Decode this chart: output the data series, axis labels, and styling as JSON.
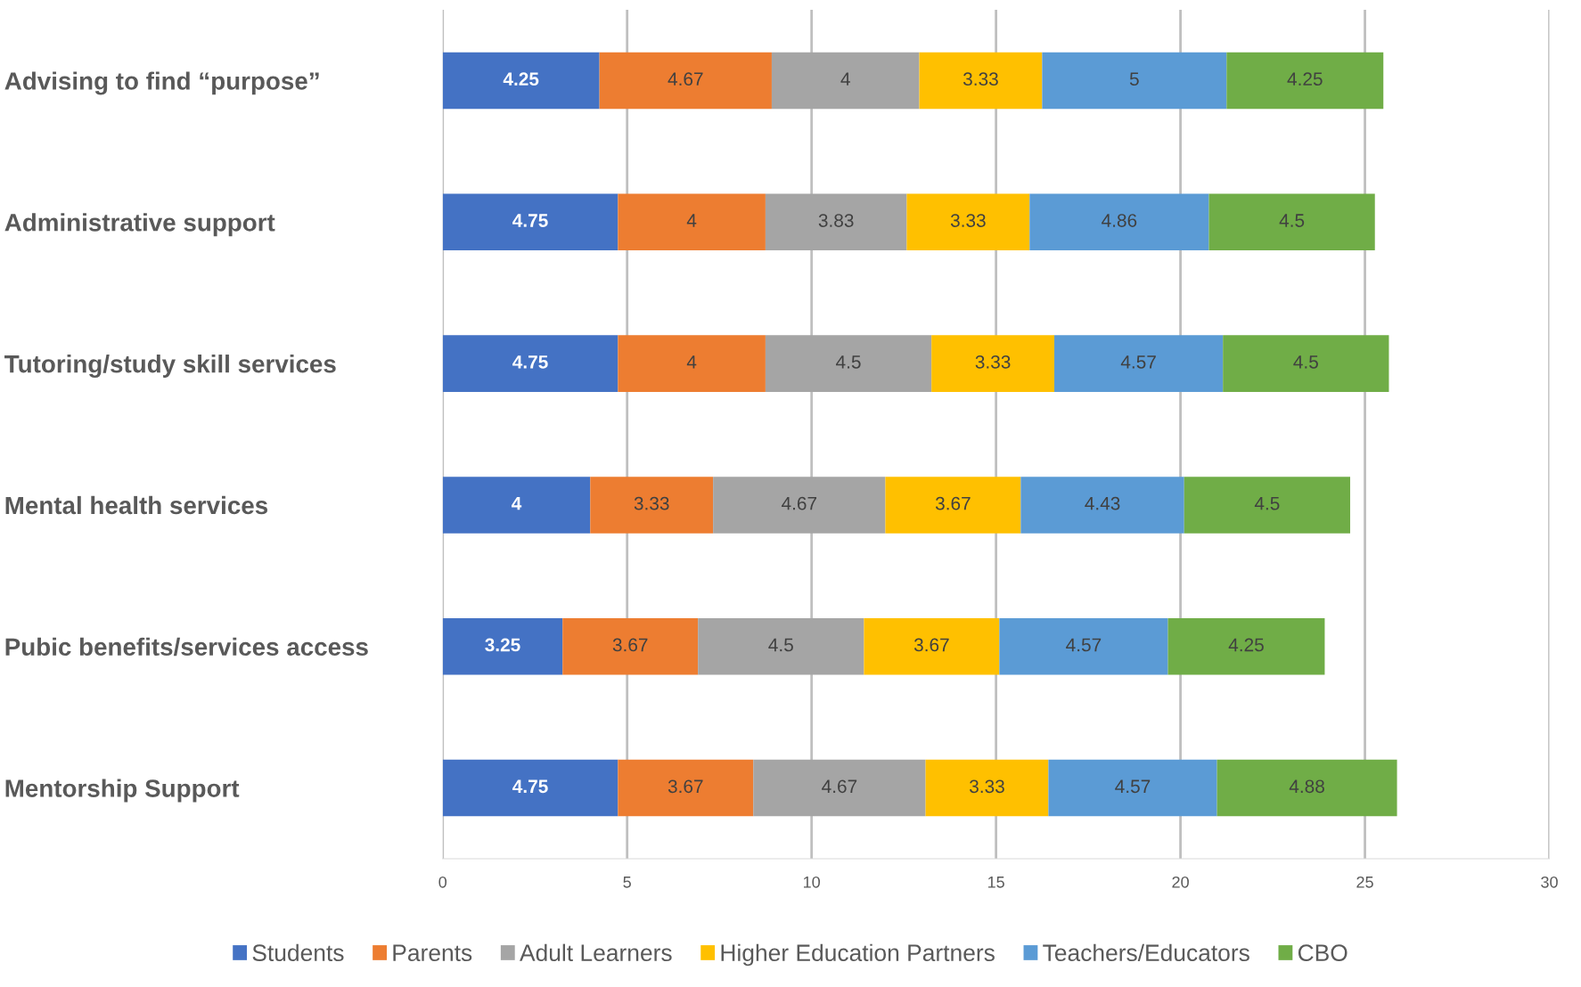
{
  "chart_data": {
    "type": "bar",
    "orientation": "horizontal",
    "stacked": true,
    "data_labels": true,
    "grid": "x",
    "legend": "bottom",
    "categories": [
      "Advising to find “purpose”",
      "Administrative support",
      "Tutoring/study skill services",
      "Mental health services",
      "Pubic benefits/services access",
      "Mentorship Support"
    ],
    "xlim": [
      0,
      30
    ],
    "xticks": [
      0,
      5,
      10,
      15,
      20,
      25,
      30
    ],
    "series": [
      {
        "name": "Students",
        "color": "#4472c4",
        "values": [
          4.25,
          4.75,
          4.75,
          4,
          3.25,
          4.75
        ]
      },
      {
        "name": "Parents",
        "color": "#ed7d31",
        "values": [
          4.67,
          4,
          4,
          3.33,
          3.67,
          3.67
        ]
      },
      {
        "name": "Adult Learners",
        "color": "#a5a5a5",
        "values": [
          4,
          3.83,
          4.5,
          4.67,
          4.5,
          4.67
        ]
      },
      {
        "name": "Higher Education Partners",
        "color": "#ffc000",
        "values": [
          3.33,
          3.33,
          3.33,
          3.67,
          3.67,
          3.33
        ]
      },
      {
        "name": "Teachers/Educators",
        "color": "#5b9bd5",
        "values": [
          5,
          4.86,
          4.57,
          4.43,
          4.57,
          4.57
        ]
      },
      {
        "name": "CBO",
        "color": "#70ad47",
        "values": [
          4.25,
          4.5,
          4.5,
          4.5,
          4.25,
          4.88
        ]
      }
    ]
  }
}
